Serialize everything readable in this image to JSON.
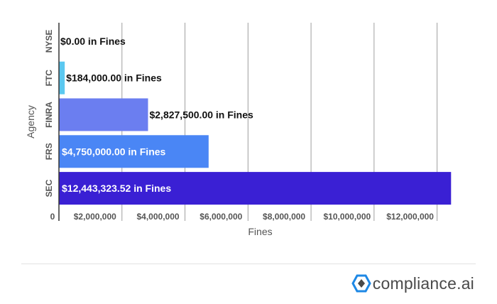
{
  "chart_data": {
    "type": "bar",
    "orientation": "horizontal",
    "categories": [
      "NYSE",
      "FTC",
      "FINRA",
      "FRS",
      "SEC"
    ],
    "values": [
      0,
      184000,
      2827500,
      4750000,
      12443323.52
    ],
    "data_labels": [
      "$0.00 in Fines",
      "$184,000.00 in Fines",
      "$2,827,500.00 in Fines",
      "$4,750,000.00 in Fines",
      "$12,443,323.52 in Fines"
    ],
    "bar_colors": [
      "#29b6e8",
      "#5bc8f0",
      "#6b7ef0",
      "#4a86f5",
      "#3a20d4"
    ],
    "xlabel": "Fines",
    "ylabel": "Agency",
    "xlim": [
      0,
      13000000
    ],
    "x_ticks": [
      0,
      2000000,
      4000000,
      6000000,
      8000000,
      10000000,
      12000000
    ],
    "x_tick_labels": [
      "0",
      "$2,000,000",
      "$4,000,000",
      "$6,000,000",
      "$8,000,000",
      "$10,000,000",
      "$12,000,000"
    ],
    "grid": true
  },
  "footer": {
    "brand_text": "compliance.ai",
    "logo_colors": [
      "#1e88e5",
      "#4a4a4a"
    ]
  }
}
